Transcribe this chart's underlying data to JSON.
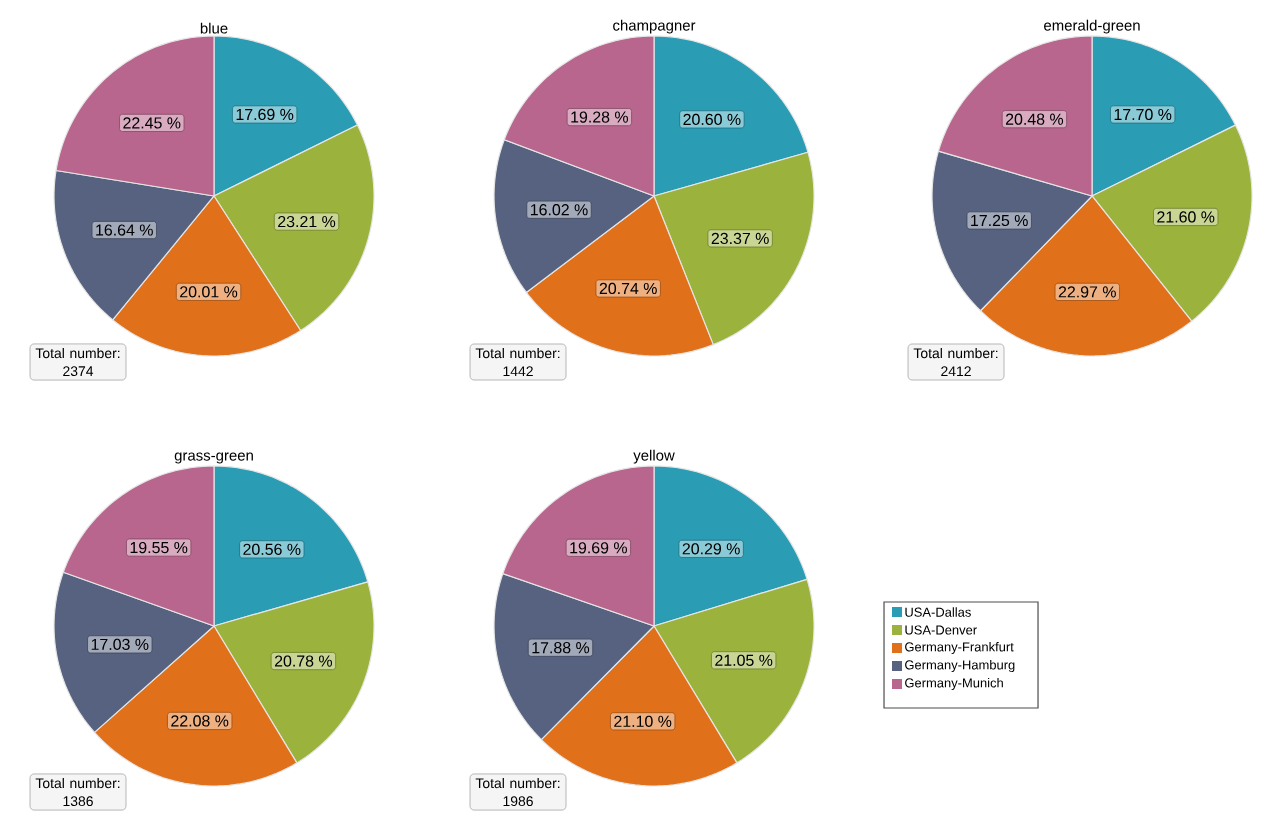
{
  "chart_data": [
    {
      "type": "pie",
      "title": "blue",
      "values": [
        17.69,
        23.21,
        20.01,
        16.64,
        22.45
      ],
      "value_labels": [
        "17.69 %",
        "23.21 %",
        "20.01 %",
        "16.64 %",
        "22.45 %"
      ],
      "colors": [
        "#2a9db5",
        "#9bb23c",
        "#e0701a",
        "#56627f",
        "#b8668d"
      ],
      "annotations": [
        "Total number: 2374"
      ]
    },
    {
      "type": "pie",
      "title": "champagner",
      "values": [
        20.6,
        23.37,
        20.74,
        16.02,
        19.28
      ],
      "value_labels": [
        "20.60 %",
        "23.37 %",
        "20.74 %",
        "16.02 %",
        "19.28 %"
      ],
      "colors": [
        "#2a9db5",
        "#9bb23c",
        "#e0701a",
        "#56627f",
        "#b8668d"
      ],
      "annotations": [
        "Total number: 1442"
      ]
    },
    {
      "type": "pie",
      "title": "emerald-green",
      "values": [
        17.7,
        21.6,
        22.97,
        17.25,
        20.48
      ],
      "value_labels": [
        "17.70 %",
        "21.60 %",
        "22.97 %",
        "17.25 %",
        "20.48 %"
      ],
      "colors": [
        "#2a9db5",
        "#9bb23c",
        "#e0701a",
        "#56627f",
        "#b8668d"
      ],
      "annotations": [
        "Total number: 2412"
      ]
    },
    {
      "type": "pie",
      "title": "grass-green",
      "values": [
        20.56,
        20.78,
        22.08,
        17.03,
        19.55
      ],
      "value_labels": [
        "20.56 %",
        "20.78 %",
        "22.08 %",
        "17.03 %",
        "19.55 %"
      ],
      "colors": [
        "#2a9db5",
        "#9bb23c",
        "#e0701a",
        "#56627f",
        "#b8668d"
      ],
      "annotations": [
        "Total number: 1386"
      ]
    },
    {
      "type": "pie",
      "title": "yellow",
      "categories": [
        "USA-Dallas",
        "USA-Denver",
        "Germany-Frankfurt",
        "Germany-Hamburg",
        "Germany-Munich"
      ],
      "values": [
        20.29,
        21.05,
        21.1,
        17.88,
        19.69
      ],
      "value_labels": [
        "20.29 %",
        "21.05 %",
        "21.10 %",
        "17.88 %",
        "19.69 %"
      ],
      "colors": [
        "#2a9db5",
        "#9bb23c",
        "#e0701a",
        "#56627f",
        "#b8668d"
      ],
      "annotations": [
        "Total number: 1986"
      ],
      "legend": "right"
    }
  ]
}
